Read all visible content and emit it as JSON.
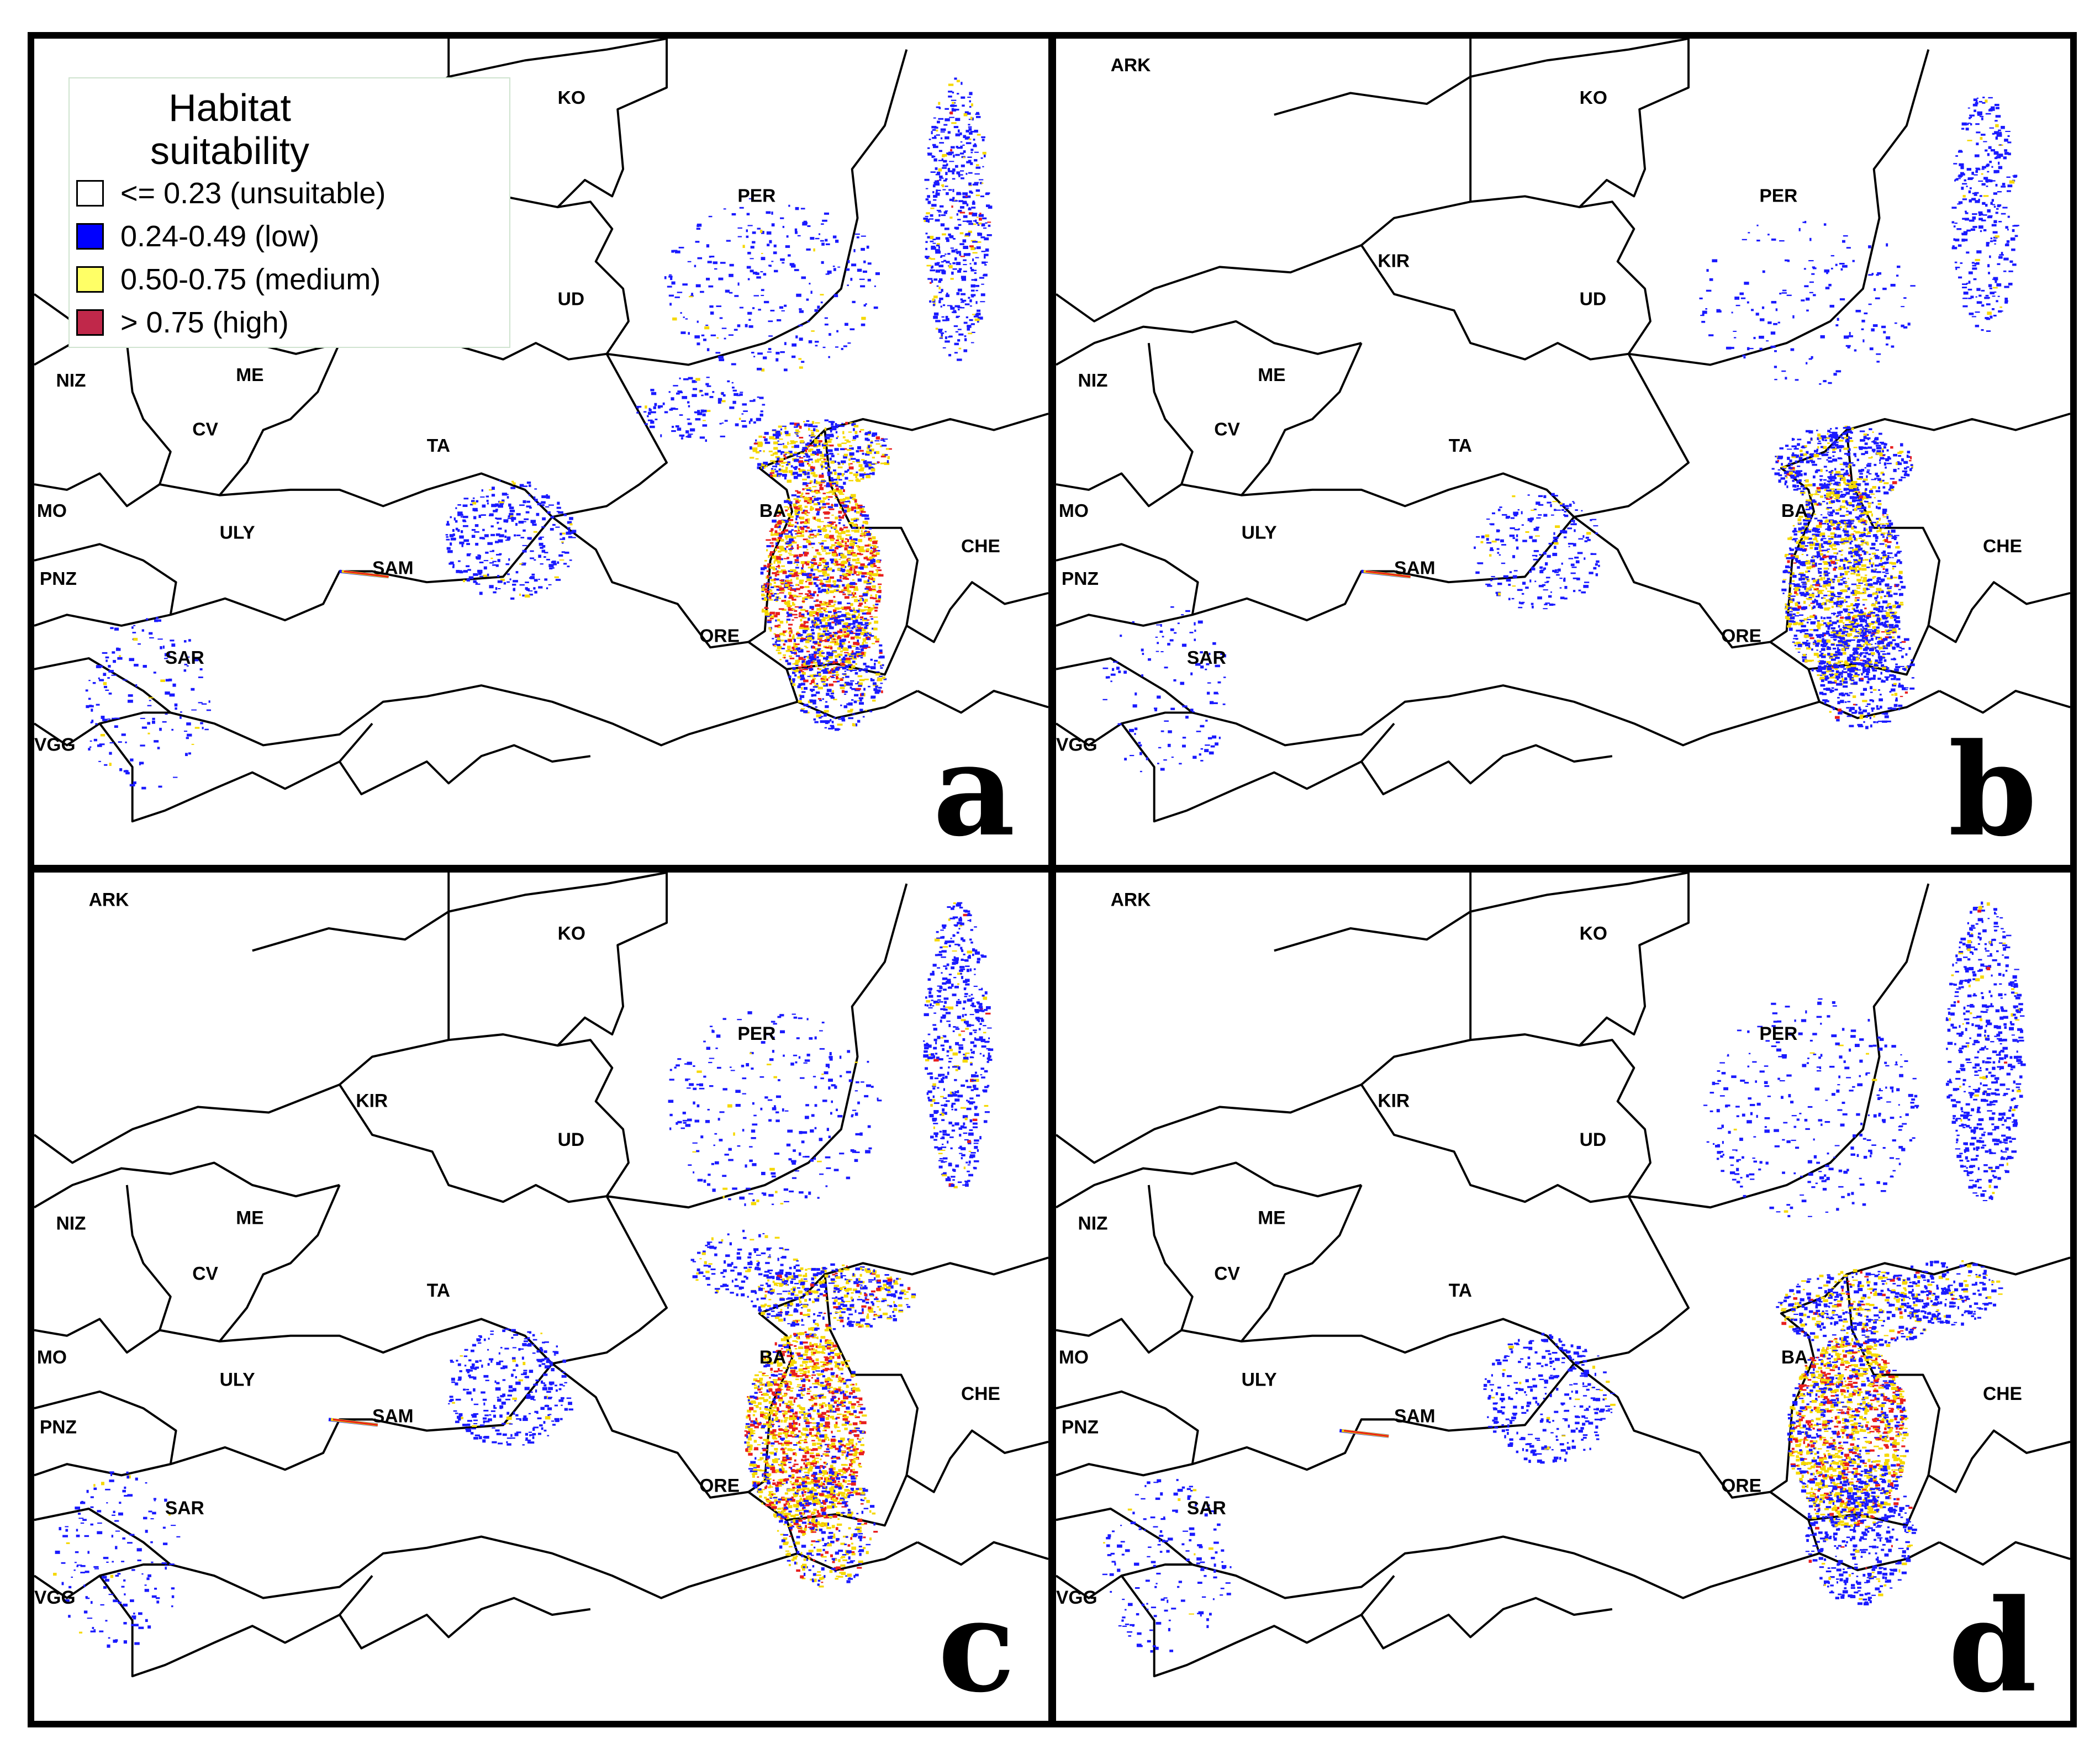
{
  "legend": {
    "title_line1": "Habitat",
    "title_line2": "suitability",
    "classes": [
      {
        "label": "<= 0.23 (unsuitable)",
        "color": "#ffffff"
      },
      {
        "label": "0.24-0.49 (low)",
        "color": "#0000ff"
      },
      {
        "label": "0.50-0.75 (medium)",
        "color": "#ffff66"
      },
      {
        "label": "> 0.75  (high)",
        "color": "#c0284a"
      }
    ]
  },
  "colors": {
    "low": "#1a1aff",
    "medium": "#f5d800",
    "high": "#e81e1e",
    "border": "#000000"
  },
  "panels": [
    {
      "letter": "a",
      "labels": {
        "KO": "KO",
        "PER": "PER",
        "UD": "UD",
        "NIZ": "NIZ",
        "ME": "ME",
        "CV": "CV",
        "TA": "TA",
        "MO": "MO",
        "ULY": "ULY",
        "SAM": "SAM",
        "PNZ": "PNZ",
        "SAR": "SAR",
        "VGG": "VGG",
        "BA": "BA",
        "CHE": "CHE",
        "ORE": "ORE"
      }
    },
    {
      "letter": "b",
      "labels": {
        "ARK": "ARK",
        "KO": "KO",
        "PER": "PER",
        "KIR": "KIR",
        "UD": "UD",
        "NIZ": "NIZ",
        "ME": "ME",
        "CV": "CV",
        "TA": "TA",
        "MO": "MO",
        "ULY": "ULY",
        "SAM": "SAM",
        "PNZ": "PNZ",
        "SAR": "SAR",
        "VGG": "VGG",
        "BA": "BA",
        "CHE": "CHE",
        "ORE": "ORE"
      }
    },
    {
      "letter": "c",
      "labels": {
        "ARK": "ARK",
        "KO": "KO",
        "PER": "PER",
        "KIR": "KIR",
        "UD": "UD",
        "NIZ": "NIZ",
        "ME": "ME",
        "CV": "CV",
        "TA": "TA",
        "MO": "MO",
        "ULY": "ULY",
        "SAM": "SAM",
        "PNZ": "PNZ",
        "SAR": "SAR",
        "VGG": "VGG",
        "BA": "BA",
        "CHE": "CHE",
        "ORE": "ORE"
      }
    },
    {
      "letter": "d",
      "labels": {
        "ARK": "ARK",
        "KO": "KO",
        "PER": "PER",
        "KIR": "KIR",
        "UD": "UD",
        "NIZ": "NIZ",
        "ME": "ME",
        "CV": "CV",
        "TA": "TA",
        "MO": "MO",
        "ULY": "ULY",
        "SAM": "SAM",
        "PNZ": "PNZ",
        "SAR": "SAR",
        "VGG": "VGG",
        "BA": "BA",
        "CHE": "CHE",
        "ORE": "ORE"
      }
    }
  ]
}
